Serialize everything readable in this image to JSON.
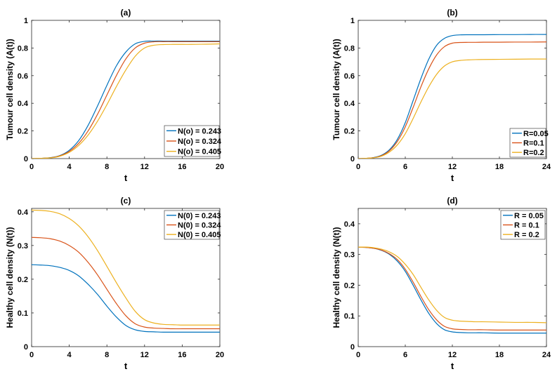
{
  "colors": {
    "blue": "#0072BD",
    "orange": "#D95319",
    "yellow": "#EDB120"
  },
  "chart_data": [
    {
      "type": "line",
      "panel": "a",
      "title": "(a)",
      "xlabel": "t",
      "ylabel": "Tumour cell density (A(t))",
      "xlim": [
        0,
        20
      ],
      "ylim": [
        0,
        1
      ],
      "xticks": [
        0,
        4,
        8,
        12,
        16,
        20
      ],
      "yticks": [
        0,
        0.2,
        0.4,
        0.6,
        0.8,
        1
      ],
      "ytick_labels": [
        "0",
        "0.2",
        "0.4",
        "0.6",
        "0.8",
        "1"
      ],
      "grid": false,
      "legend_position": "bottom-right",
      "x": [
        0,
        1,
        2,
        3,
        4,
        5,
        6,
        7,
        8,
        9,
        10,
        11,
        12,
        13,
        14,
        15,
        16,
        17,
        18,
        19,
        20
      ],
      "series": [
        {
          "name": "N(o) = 0.243",
          "color": "blue",
          "values": [
            0.0,
            0.002,
            0.007,
            0.022,
            0.06,
            0.13,
            0.24,
            0.38,
            0.53,
            0.67,
            0.77,
            0.83,
            0.848,
            0.85,
            0.85,
            0.85,
            0.85,
            0.85,
            0.85,
            0.85,
            0.85
          ]
        },
        {
          "name": "N(o) = 0.324",
          "color": "orange",
          "values": [
            0.0,
            0.002,
            0.006,
            0.02,
            0.052,
            0.11,
            0.2,
            0.32,
            0.46,
            0.6,
            0.72,
            0.8,
            0.835,
            0.845,
            0.846,
            0.846,
            0.846,
            0.846,
            0.846,
            0.846,
            0.846
          ]
        },
        {
          "name": "N(o) = 0.405",
          "color": "yellow",
          "values": [
            0.0,
            0.002,
            0.005,
            0.017,
            0.045,
            0.095,
            0.17,
            0.27,
            0.39,
            0.52,
            0.64,
            0.74,
            0.8,
            0.82,
            0.825,
            0.826,
            0.826,
            0.826,
            0.827,
            0.828,
            0.83
          ]
        }
      ]
    },
    {
      "type": "line",
      "panel": "b",
      "title": "(b)",
      "xlabel": "t",
      "ylabel": "Tumour cell density (A(t))",
      "xlim": [
        0,
        24
      ],
      "ylim": [
        0,
        1
      ],
      "xticks": [
        0,
        6,
        12,
        18,
        24
      ],
      "yticks": [
        0,
        0.2,
        0.4,
        0.6,
        0.8,
        1
      ],
      "ytick_labels": [
        "0",
        "0.2",
        "0.4",
        "0.6",
        "0.8",
        "1"
      ],
      "grid": false,
      "legend_position": "bottom-right",
      "x": [
        0,
        1,
        2,
        3,
        4,
        5,
        6,
        7,
        8,
        9,
        10,
        11,
        12,
        13,
        14,
        15,
        16,
        18,
        20,
        22,
        24
      ],
      "series": [
        {
          "name": "R=0.05",
          "color": "blue",
          "values": [
            0.0,
            0.002,
            0.008,
            0.025,
            0.065,
            0.14,
            0.26,
            0.42,
            0.58,
            0.72,
            0.82,
            0.87,
            0.89,
            0.895,
            0.896,
            0.896,
            0.896,
            0.897,
            0.897,
            0.898,
            0.898
          ]
        },
        {
          "name": "R=0.1",
          "color": "orange",
          "values": [
            0.0,
            0.002,
            0.007,
            0.022,
            0.058,
            0.125,
            0.23,
            0.37,
            0.52,
            0.65,
            0.75,
            0.81,
            0.835,
            0.84,
            0.841,
            0.841,
            0.842,
            0.842,
            0.843,
            0.843,
            0.844
          ]
        },
        {
          "name": "R=0.2",
          "color": "yellow",
          "values": [
            0.0,
            0.002,
            0.006,
            0.018,
            0.048,
            0.1,
            0.18,
            0.29,
            0.41,
            0.52,
            0.61,
            0.67,
            0.7,
            0.71,
            0.714,
            0.716,
            0.717,
            0.718,
            0.719,
            0.72,
            0.72
          ]
        }
      ]
    },
    {
      "type": "line",
      "panel": "c",
      "title": "(c)",
      "xlabel": "t",
      "ylabel": "Healthy cell density (N(t))",
      "xlim": [
        0,
        20
      ],
      "ylim": [
        0,
        0.41
      ],
      "xticks": [
        0,
        4,
        8,
        12,
        16,
        20
      ],
      "yticks": [
        0,
        0.1,
        0.2,
        0.3,
        0.4
      ],
      "ytick_labels": [
        "0",
        "0.1",
        "0.2",
        "0.3",
        "0.4"
      ],
      "grid": false,
      "legend_position": "top-right",
      "x": [
        0,
        1,
        2,
        3,
        4,
        5,
        6,
        7,
        8,
        9,
        10,
        11,
        12,
        13,
        14,
        15,
        16,
        17,
        18,
        19,
        20
      ],
      "series": [
        {
          "name": "N(0) = 0.243",
          "color": "blue",
          "values": [
            0.243,
            0.242,
            0.24,
            0.235,
            0.226,
            0.21,
            0.185,
            0.155,
            0.12,
            0.088,
            0.063,
            0.05,
            0.045,
            0.044,
            0.043,
            0.043,
            0.043,
            0.043,
            0.043,
            0.043,
            0.043
          ]
        },
        {
          "name": "N(0) = 0.324",
          "color": "orange",
          "values": [
            0.324,
            0.323,
            0.32,
            0.313,
            0.3,
            0.28,
            0.25,
            0.213,
            0.17,
            0.128,
            0.092,
            0.068,
            0.058,
            0.055,
            0.054,
            0.053,
            0.053,
            0.053,
            0.053,
            0.053,
            0.053
          ]
        },
        {
          "name": "N(0) = 0.405",
          "color": "yellow",
          "values": [
            0.405,
            0.404,
            0.401,
            0.394,
            0.38,
            0.358,
            0.326,
            0.285,
            0.238,
            0.19,
            0.145,
            0.105,
            0.08,
            0.07,
            0.066,
            0.065,
            0.064,
            0.064,
            0.064,
            0.064,
            0.064
          ]
        }
      ]
    },
    {
      "type": "line",
      "panel": "d",
      "title": "(d)",
      "xlabel": "t",
      "ylabel": "Healthy cell density (N(t))",
      "xlim": [
        0,
        24
      ],
      "ylim": [
        0,
        0.45
      ],
      "xticks": [
        0,
        6,
        12,
        18,
        24
      ],
      "yticks": [
        0,
        0.1,
        0.2,
        0.3,
        0.4
      ],
      "ytick_labels": [
        "0",
        "0.1",
        "0.2",
        "0.3",
        "0.4"
      ],
      "grid": false,
      "legend_position": "top-right",
      "x": [
        0,
        1,
        2,
        3,
        4,
        5,
        6,
        7,
        8,
        9,
        10,
        11,
        12,
        13,
        14,
        15,
        16,
        18,
        20,
        22,
        24
      ],
      "series": [
        {
          "name": "R = 0.05",
          "color": "blue",
          "values": [
            0.324,
            0.323,
            0.32,
            0.313,
            0.3,
            0.278,
            0.245,
            0.2,
            0.152,
            0.108,
            0.075,
            0.055,
            0.048,
            0.046,
            0.045,
            0.045,
            0.045,
            0.044,
            0.044,
            0.044,
            0.044
          ]
        },
        {
          "name": "R = 0.1",
          "color": "orange",
          "values": [
            0.324,
            0.323,
            0.32,
            0.314,
            0.302,
            0.283,
            0.252,
            0.21,
            0.163,
            0.12,
            0.087,
            0.066,
            0.058,
            0.056,
            0.055,
            0.055,
            0.055,
            0.054,
            0.054,
            0.054,
            0.054
          ]
        },
        {
          "name": "R = 0.2",
          "color": "yellow",
          "values": [
            0.324,
            0.324,
            0.322,
            0.317,
            0.308,
            0.293,
            0.268,
            0.235,
            0.193,
            0.152,
            0.118,
            0.095,
            0.086,
            0.083,
            0.082,
            0.081,
            0.081,
            0.08,
            0.079,
            0.079,
            0.078
          ]
        }
      ]
    }
  ]
}
